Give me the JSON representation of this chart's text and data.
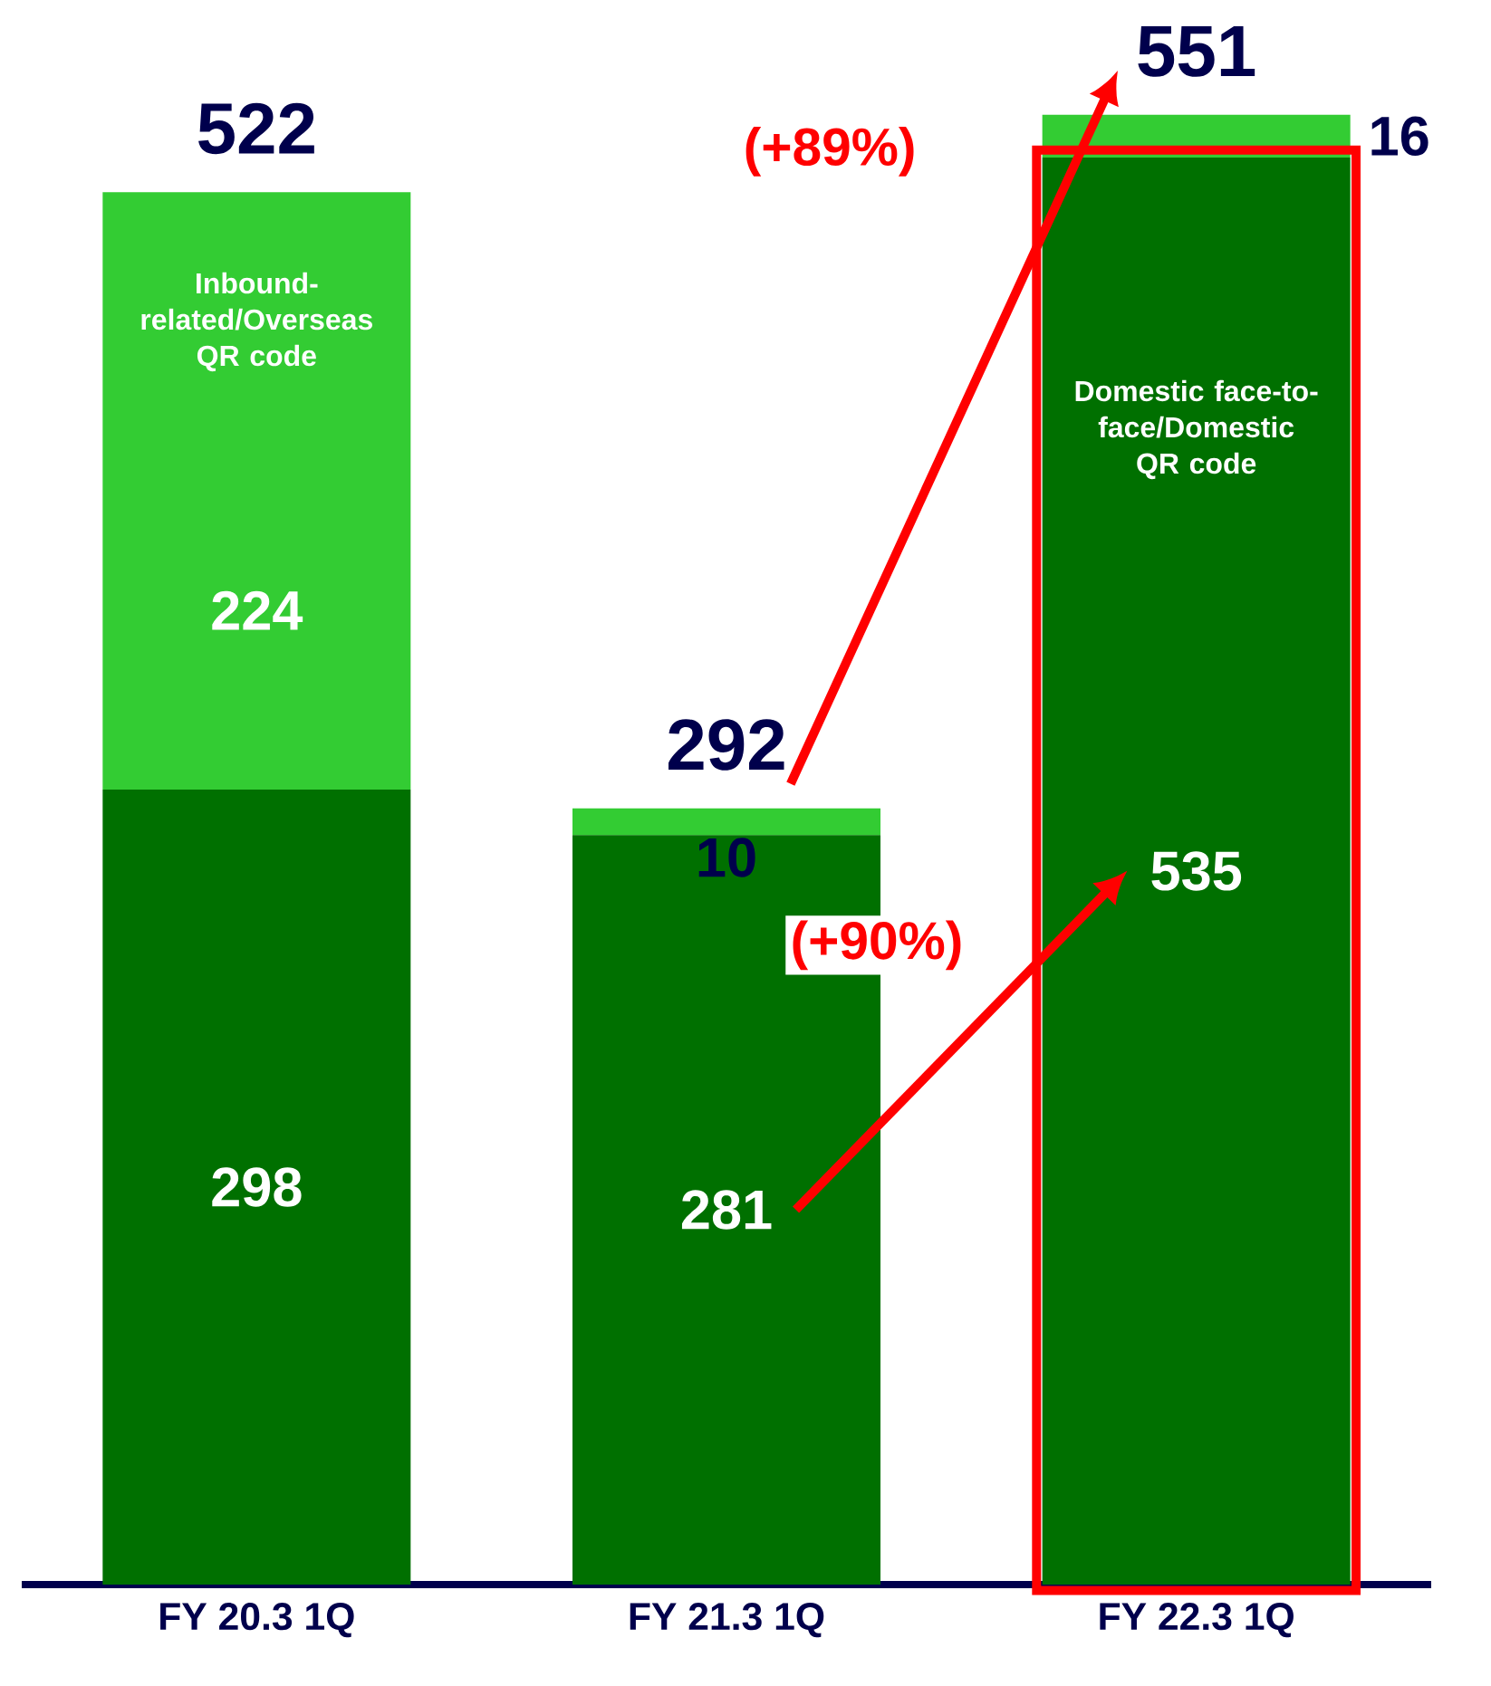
{
  "chart_data": {
    "type": "bar",
    "stacked": true,
    "categories": [
      "FY 20.3 1Q",
      "FY 21.3 1Q",
      "FY 22.3 1Q"
    ],
    "series": [
      {
        "name": "Domestic face-to-face/Domestic QR code",
        "color": "#007000",
        "values": [
          298,
          281,
          535
        ]
      },
      {
        "name": "Inbound-related/Overseas QR code",
        "color": "#33cc33",
        "values": [
          224,
          10,
          16
        ]
      }
    ],
    "data_labels": true,
    "totals": [
      "522",
      "292",
      "551"
    ],
    "annotations": [
      "(+89%)",
      "(+90%)"
    ],
    "legend": false
  }
}
